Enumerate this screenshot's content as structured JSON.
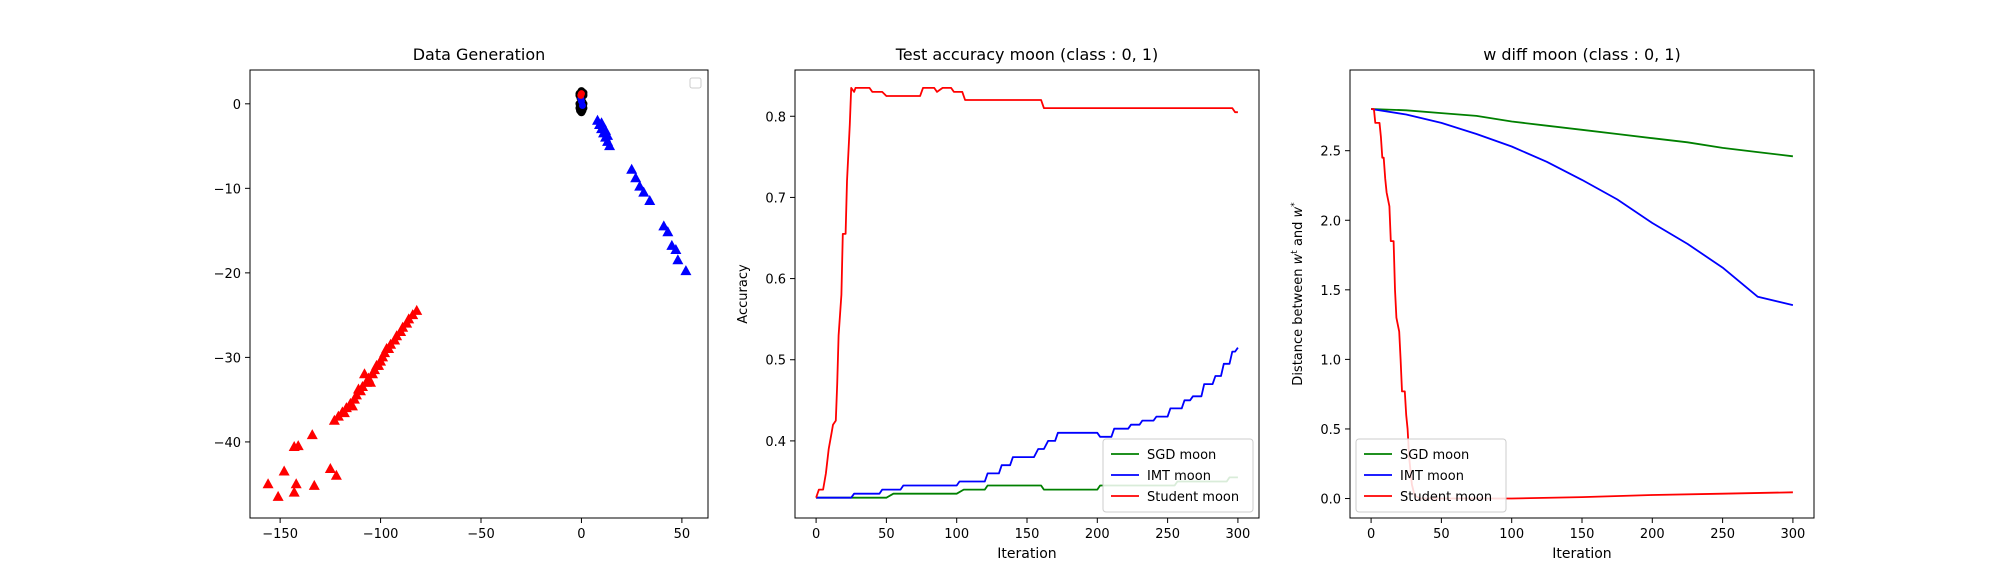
{
  "chart_data": [
    {
      "type": "scatter",
      "title": "Data Generation",
      "xlabel": "",
      "ylabel": "",
      "xlim": [
        -165,
        63
      ],
      "ylim": [
        -49,
        4
      ],
      "xticks": [
        -150,
        -100,
        -50,
        0,
        50
      ],
      "yticks": [
        0,
        -10,
        -20,
        -30,
        -40
      ],
      "legend": {
        "placement": "upper right",
        "entries": []
      },
      "series": [
        {
          "color": "#ff0000",
          "marker": "triangle",
          "points": [
            [
              -82,
              -24.5
            ],
            [
              -84,
              -25
            ],
            [
              -86,
              -25.5
            ],
            [
              -87,
              -26
            ],
            [
              -89,
              -26.5
            ],
            [
              -90,
              -27
            ],
            [
              -92,
              -27.5
            ],
            [
              -93,
              -28
            ],
            [
              -95,
              -28.5
            ],
            [
              -96,
              -29
            ],
            [
              -98,
              -29.5
            ],
            [
              -99,
              -30
            ],
            [
              -100,
              -30.5
            ],
            [
              -102,
              -31
            ],
            [
              -103,
              -31.5
            ],
            [
              -104,
              -32
            ],
            [
              -106,
              -32.5
            ],
            [
              -107,
              -33
            ],
            [
              -109,
              -33.5
            ],
            [
              -110,
              -34
            ],
            [
              -112,
              -34.5
            ],
            [
              -113,
              -35
            ],
            [
              -115,
              -35.5
            ],
            [
              -117,
              -36
            ],
            [
              -119,
              -36.5
            ],
            [
              -121,
              -37
            ],
            [
              -123,
              -37.5
            ],
            [
              -97,
              -29
            ],
            [
              -101,
              -31
            ],
            [
              -105,
              -33
            ],
            [
              -111,
              -33.8
            ],
            [
              -108,
              -32
            ],
            [
              -114,
              -35.8
            ],
            [
              -118,
              -36.6
            ],
            [
              -134,
              -39.2
            ],
            [
              -141,
              -40.5
            ],
            [
              -143,
              -40.6
            ],
            [
              -148,
              -43.5
            ],
            [
              -125,
              -43.2
            ],
            [
              -122,
              -44
            ],
            [
              -142,
              -45
            ],
            [
              -133,
              -45.2
            ],
            [
              -156,
              -45
            ],
            [
              -143,
              -46
            ],
            [
              -151,
              -46.5
            ]
          ]
        },
        {
          "color": "#0000ff",
          "marker": "triangle",
          "points": [
            [
              8,
              -2
            ],
            [
              9,
              -2.5
            ],
            [
              10,
              -3
            ],
            [
              11,
              -3.5
            ],
            [
              12,
              -4
            ],
            [
              13,
              -4.5
            ],
            [
              14,
              -5
            ],
            [
              10,
              -2.3
            ],
            [
              12,
              -3.2
            ],
            [
              13,
              -3.8
            ],
            [
              25,
              -7.8
            ],
            [
              27,
              -8.8
            ],
            [
              29,
              -9.8
            ],
            [
              31,
              -10.5
            ],
            [
              34,
              -11.5
            ],
            [
              41,
              -14.5
            ],
            [
              43,
              -15.2
            ],
            [
              45,
              -16.8
            ],
            [
              47,
              -17.3
            ],
            [
              48,
              -18.5
            ],
            [
              52,
              -19.8
            ]
          ]
        },
        {
          "color": "#000000",
          "marker": "circle",
          "points": [
            [
              0,
              1.5
            ],
            [
              -1,
              1
            ],
            [
              1,
              1
            ],
            [
              0,
              0.5
            ],
            [
              -1,
              0
            ],
            [
              1,
              0
            ],
            [
              0,
              -0.5
            ],
            [
              -1,
              -0.5
            ],
            [
              1,
              -0.5
            ],
            [
              0,
              -1
            ],
            [
              -1,
              1.2
            ],
            [
              1,
              1.3
            ],
            [
              0.5,
              0.2
            ],
            [
              -0.5,
              0.7
            ],
            [
              0.5,
              -0.8
            ],
            [
              -0.7,
              -0.8
            ]
          ]
        },
        {
          "color": "#0000ff",
          "marker": "circle",
          "points": [
            [
              0,
              0.3
            ],
            [
              0.5,
              -0.2
            ],
            [
              -0.3,
              0.6
            ]
          ]
        },
        {
          "color": "#ff0000",
          "marker": "circle",
          "points": [
            [
              0,
              1.2
            ],
            [
              -0.3,
              1
            ]
          ]
        }
      ]
    },
    {
      "type": "line",
      "title": "Test accuracy moon (class : 0, 1)",
      "xlabel": "Iteration",
      "ylabel": "Accuracy",
      "xlim": [
        -15,
        315
      ],
      "ylim": [
        0.305,
        0.857
      ],
      "xticks": [
        0,
        50,
        100,
        150,
        200,
        250,
        300
      ],
      "yticks": [
        0.4,
        0.5,
        0.6,
        0.7,
        0.8
      ],
      "legend": {
        "placement": "lower right",
        "entries": [
          "SGD moon",
          "IMT moon",
          "Student moon"
        ]
      },
      "series": [
        {
          "name": "SGD moon",
          "color": "#008000",
          "points": [
            [
              0,
              0.33
            ],
            [
              50,
              0.33
            ],
            [
              55,
              0.335
            ],
            [
              100,
              0.335
            ],
            [
              105,
              0.34
            ],
            [
              120,
              0.34
            ],
            [
              122,
              0.345
            ],
            [
              160,
              0.345
            ],
            [
              162,
              0.34
            ],
            [
              200,
              0.34
            ],
            [
              202,
              0.345
            ],
            [
              255,
              0.345
            ],
            [
              257,
              0.35
            ],
            [
              292,
              0.35
            ],
            [
              294,
              0.355
            ],
            [
              300,
              0.355
            ]
          ]
        },
        {
          "name": "IMT moon",
          "color": "#0000ff",
          "points": [
            [
              0,
              0.33
            ],
            [
              25,
              0.33
            ],
            [
              27,
              0.335
            ],
            [
              45,
              0.335
            ],
            [
              47,
              0.34
            ],
            [
              60,
              0.34
            ],
            [
              62,
              0.345
            ],
            [
              75,
              0.345
            ],
            [
              80,
              0.345
            ],
            [
              100,
              0.345
            ],
            [
              102,
              0.35
            ],
            [
              120,
              0.35
            ],
            [
              122,
              0.36
            ],
            [
              130,
              0.36
            ],
            [
              132,
              0.37
            ],
            [
              138,
              0.37
            ],
            [
              140,
              0.38
            ],
            [
              155,
              0.38
            ],
            [
              158,
              0.39
            ],
            [
              162,
              0.39
            ],
            [
              165,
              0.4
            ],
            [
              170,
              0.4
            ],
            [
              172,
              0.41
            ],
            [
              200,
              0.41
            ],
            [
              202,
              0.405
            ],
            [
              210,
              0.405
            ],
            [
              212,
              0.415
            ],
            [
              222,
              0.415
            ],
            [
              224,
              0.42
            ],
            [
              230,
              0.42
            ],
            [
              232,
              0.425
            ],
            [
              240,
              0.425
            ],
            [
              242,
              0.43
            ],
            [
              250,
              0.43
            ],
            [
              252,
              0.44
            ],
            [
              260,
              0.44
            ],
            [
              262,
              0.45
            ],
            [
              266,
              0.45
            ],
            [
              268,
              0.455
            ],
            [
              274,
              0.455
            ],
            [
              276,
              0.47
            ],
            [
              282,
              0.47
            ],
            [
              284,
              0.48
            ],
            [
              288,
              0.48
            ],
            [
              290,
              0.495
            ],
            [
              294,
              0.495
            ],
            [
              296,
              0.51
            ],
            [
              298,
              0.51
            ],
            [
              300,
              0.515
            ]
          ]
        },
        {
          "name": "Student moon",
          "color": "#ff0000",
          "points": [
            [
              0,
              0.33
            ],
            [
              2,
              0.34
            ],
            [
              5,
              0.34
            ],
            [
              7,
              0.36
            ],
            [
              9,
              0.39
            ],
            [
              11,
              0.41
            ],
            [
              12,
              0.42
            ],
            [
              14,
              0.425
            ],
            [
              15,
              0.47
            ],
            [
              16,
              0.53
            ],
            [
              18,
              0.58
            ],
            [
              19,
              0.655
            ],
            [
              21,
              0.655
            ],
            [
              22,
              0.72
            ],
            [
              24,
              0.79
            ],
            [
              25,
              0.835
            ],
            [
              27,
              0.83
            ],
            [
              28,
              0.835
            ],
            [
              38,
              0.835
            ],
            [
              40,
              0.83
            ],
            [
              47,
              0.83
            ],
            [
              50,
              0.825
            ],
            [
              74,
              0.825
            ],
            [
              76,
              0.835
            ],
            [
              84,
              0.835
            ],
            [
              86,
              0.83
            ],
            [
              90,
              0.835
            ],
            [
              96,
              0.835
            ],
            [
              98,
              0.83
            ],
            [
              104,
              0.83
            ],
            [
              106,
              0.82
            ],
            [
              160,
              0.82
            ],
            [
              162,
              0.81
            ],
            [
              296,
              0.81
            ],
            [
              298,
              0.805
            ],
            [
              300,
              0.805
            ]
          ]
        }
      ]
    },
    {
      "type": "line",
      "title": "w diff moon (class : 0, 1)",
      "xlabel": "Iteration",
      "ylabel": "Distance between w^t and w^*",
      "xlim": [
        -15,
        315
      ],
      "ylim": [
        -0.14,
        3.08
      ],
      "xticks": [
        0,
        50,
        100,
        150,
        200,
        250,
        300
      ],
      "yticks": [
        0.0,
        0.5,
        1.0,
        1.5,
        2.0,
        2.5
      ],
      "legend": {
        "placement": "lower left",
        "entries": [
          "SGD moon",
          "IMT moon",
          "Student moon"
        ]
      },
      "series": [
        {
          "name": "SGD moon",
          "color": "#008000",
          "points": [
            [
              0,
              2.8
            ],
            [
              25,
              2.79
            ],
            [
              50,
              2.77
            ],
            [
              75,
              2.75
            ],
            [
              100,
              2.71
            ],
            [
              125,
              2.68
            ],
            [
              150,
              2.65
            ],
            [
              175,
              2.62
            ],
            [
              200,
              2.59
            ],
            [
              225,
              2.56
            ],
            [
              250,
              2.52
            ],
            [
              275,
              2.49
            ],
            [
              300,
              2.46
            ]
          ]
        },
        {
          "name": "IMT moon",
          "color": "#0000ff",
          "points": [
            [
              0,
              2.8
            ],
            [
              25,
              2.76
            ],
            [
              50,
              2.7
            ],
            [
              75,
              2.62
            ],
            [
              100,
              2.53
            ],
            [
              125,
              2.42
            ],
            [
              150,
              2.29
            ],
            [
              175,
              2.15
            ],
            [
              200,
              1.98
            ],
            [
              225,
              1.83
            ],
            [
              250,
              1.66
            ],
            [
              275,
              1.45
            ],
            [
              300,
              1.39
            ]
          ]
        },
        {
          "name": "Student moon",
          "color": "#ff0000",
          "points": [
            [
              0,
              2.8
            ],
            [
              2,
              2.8
            ],
            [
              3,
              2.7
            ],
            [
              6,
              2.7
            ],
            [
              7,
              2.6
            ],
            [
              8,
              2.45
            ],
            [
              9,
              2.45
            ],
            [
              10,
              2.3
            ],
            [
              11,
              2.2
            ],
            [
              13,
              2.1
            ],
            [
              14,
              1.85
            ],
            [
              16,
              1.85
            ],
            [
              17,
              1.5
            ],
            [
              18,
              1.3
            ],
            [
              20,
              1.2
            ],
            [
              21,
              1.0
            ],
            [
              22,
              0.77
            ],
            [
              24,
              0.77
            ],
            [
              25,
              0.6
            ],
            [
              26,
              0.5
            ],
            [
              27,
              0.3
            ],
            [
              28,
              0.2
            ],
            [
              29,
              0.1
            ],
            [
              31,
              0.02
            ],
            [
              35,
              0.0
            ],
            [
              60,
              0.0
            ],
            [
              100,
              0.0
            ],
            [
              150,
              0.01
            ],
            [
              200,
              0.025
            ],
            [
              250,
              0.035
            ],
            [
              300,
              0.045
            ]
          ]
        }
      ]
    }
  ]
}
